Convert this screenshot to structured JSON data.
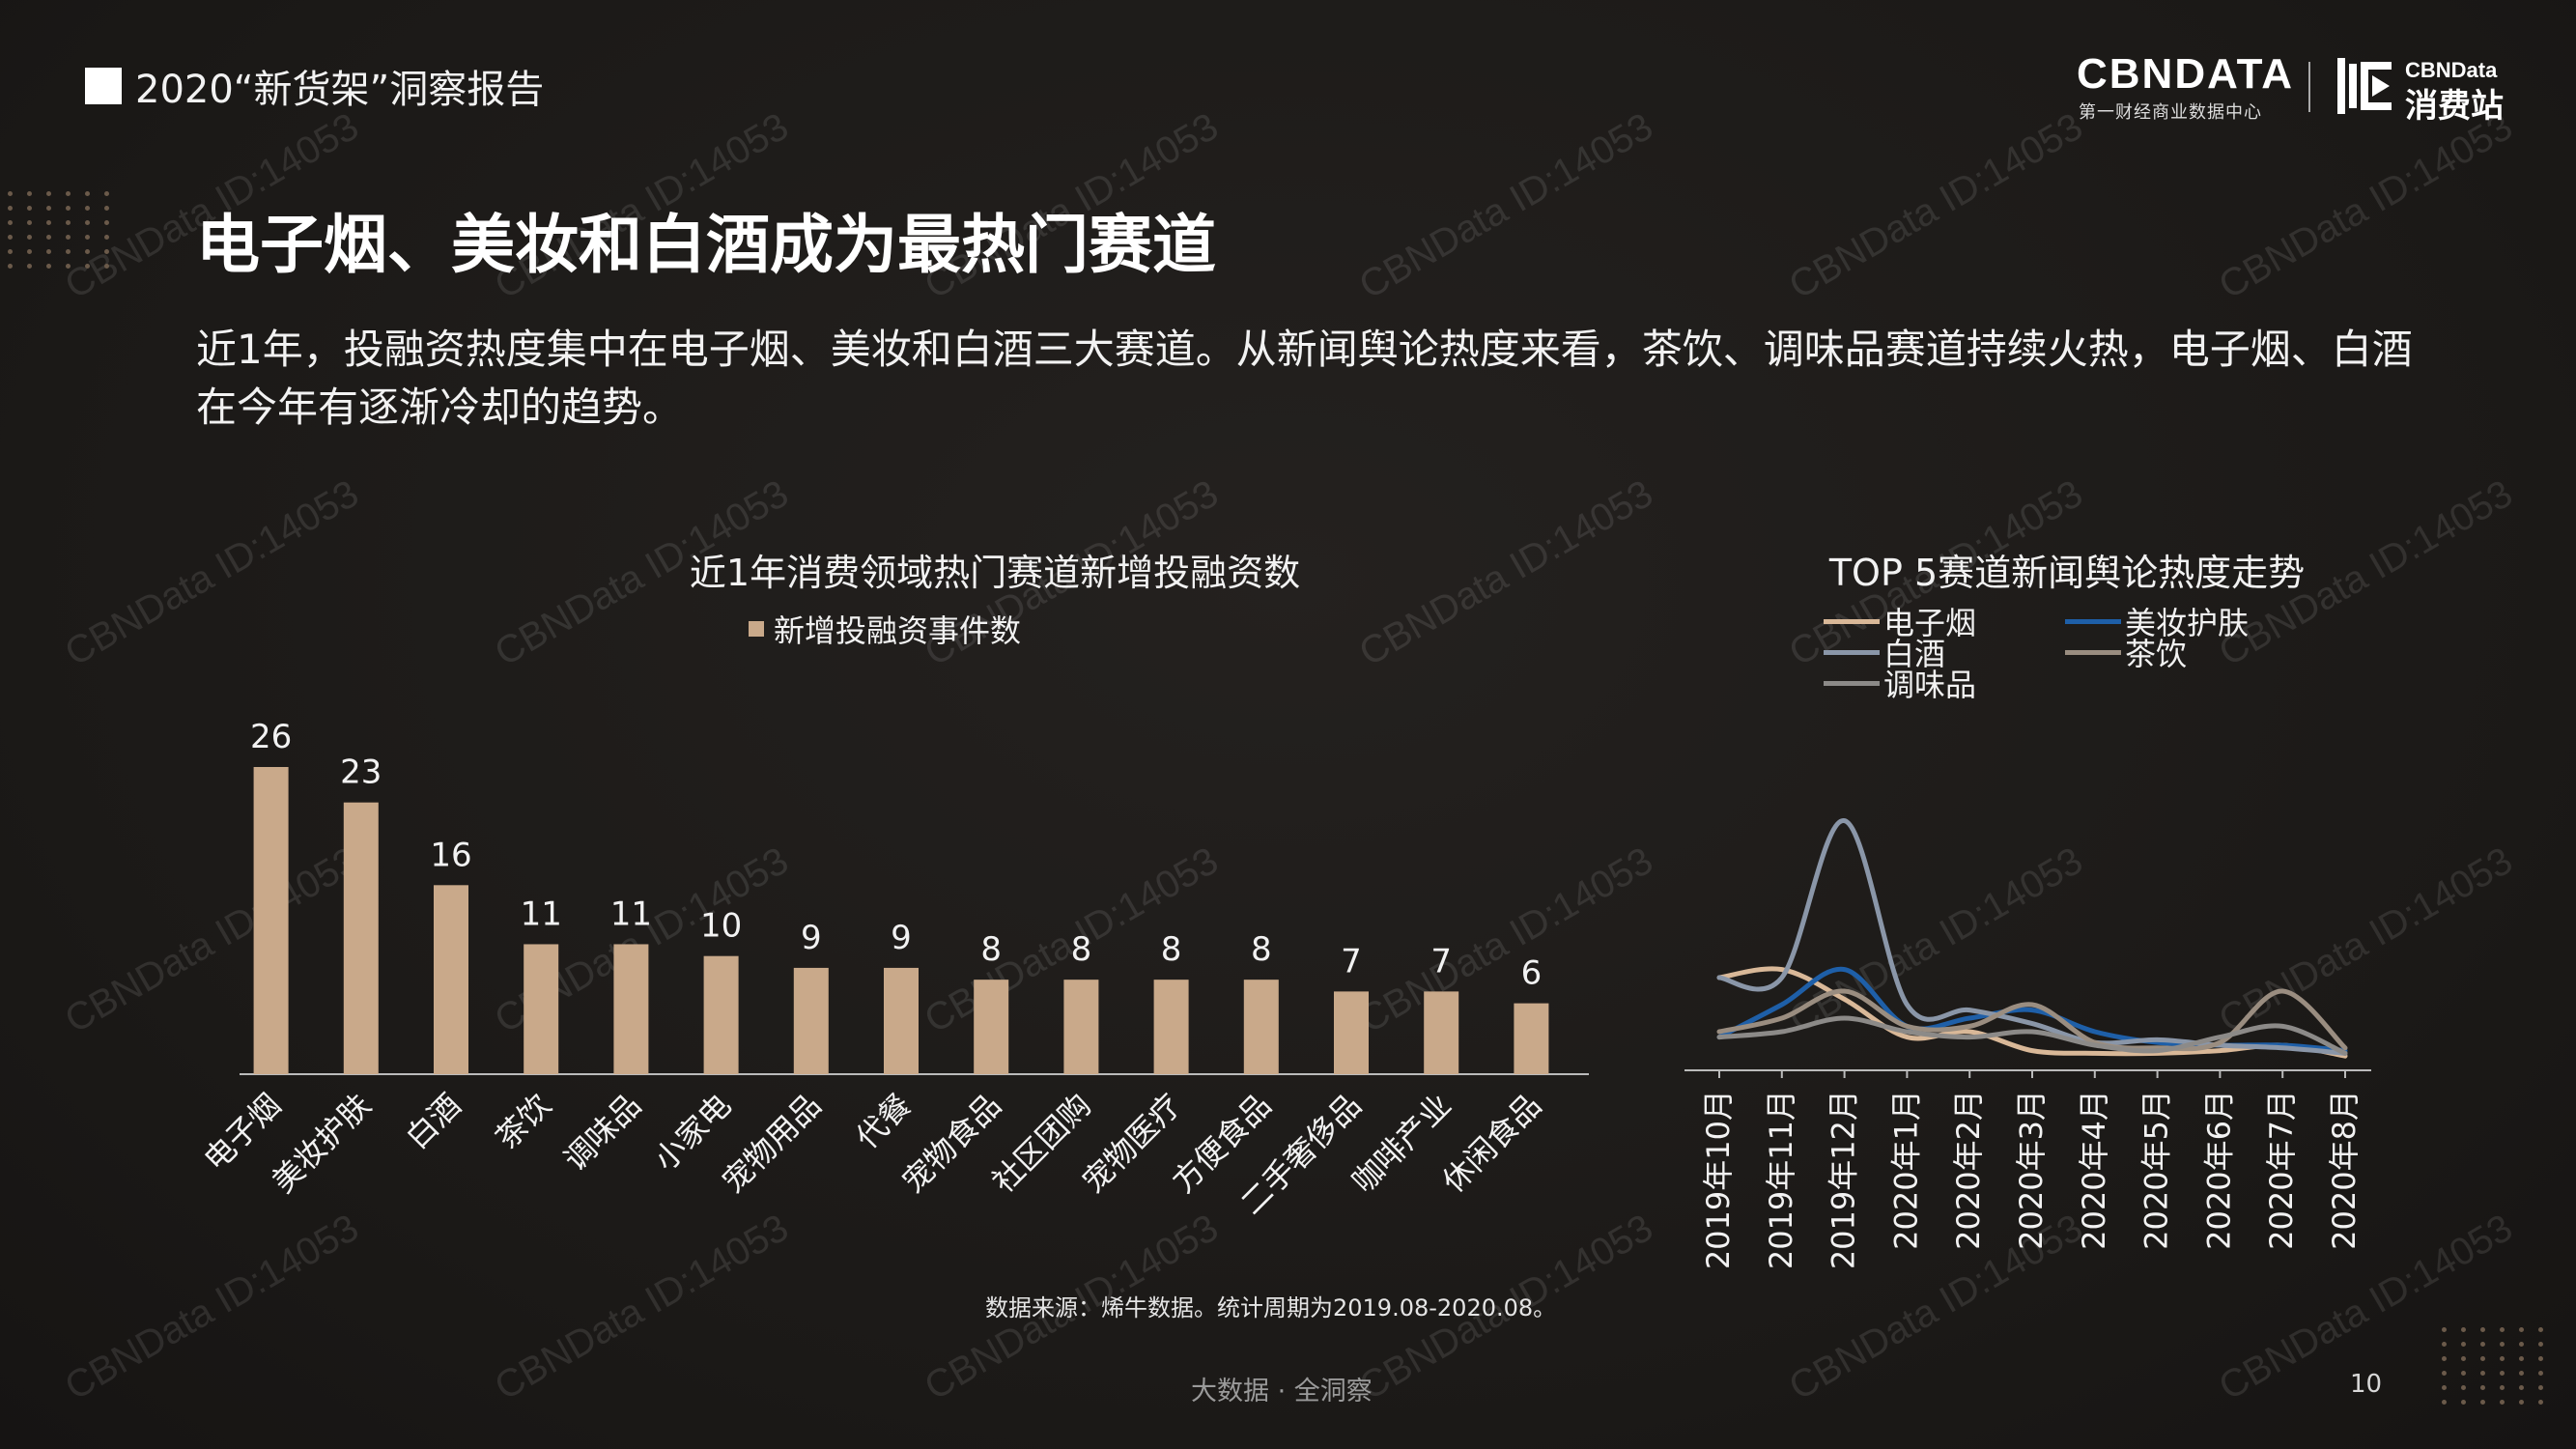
{
  "header": {
    "title": "2020“新货架”洞察报告"
  },
  "logo": {
    "primary": "CBNDATA",
    "primary_sub": "第一财经商业数据中心",
    "secondary_top": "CBNData",
    "secondary_bottom": "消费站"
  },
  "page_title": "电子烟、美妆和白酒成为最热门赛道",
  "intro": "近1年，投融资热度集中在电子烟、美妆和白酒三大赛道。从新闻舆论热度来看，茶饮、调味品赛道持续火热，电子烟、白酒在今年有逐渐冷却的趋势。",
  "watermark": "CBNData ID:14053",
  "source": "数据来源：烯牛数据。统计周期为2019.08-2020.08。",
  "footer": "大数据 · 全洞察",
  "page_number": "10",
  "colors": {
    "bar": "#c9a98a",
    "electronic_cig": "#d9b898",
    "beauty": "#1e5fa8",
    "baijiu": "#8a96a8",
    "tea": "#9a8d80",
    "seasoning": "#8c8a88",
    "axis": "#bbbbbb"
  },
  "chart_data": [
    {
      "type": "bar",
      "title": "近1年消费领域热门赛道新增投融资数",
      "legend": "新增投融资事件数",
      "categories": [
        "电子烟",
        "美妆护肤",
        "白酒",
        "茶饮",
        "调味品",
        "小家电",
        "宠物用品",
        "代餐",
        "宠物食品",
        "社区团购",
        "宠物医疗",
        "方便食品",
        "二手奢侈品",
        "咖啡产业",
        "休闲食品"
      ],
      "values": [
        26,
        23,
        16,
        11,
        11,
        10,
        9,
        9,
        8,
        8,
        8,
        8,
        7,
        7,
        6
      ],
      "ylim": [
        0,
        28
      ]
    },
    {
      "type": "line",
      "title": "TOP 5赛道新闻舆论热度走势",
      "categories": [
        "2019年10月",
        "2019年11月",
        "2019年12月",
        "2020年1月",
        "2020年2月",
        "2020年3月",
        "2020年4月",
        "2020年5月",
        "2020年6月",
        "2020年7月",
        "2020年8月"
      ],
      "legend_position": "top",
      "ylim": [
        0,
        100
      ],
      "series": [
        {
          "name": "电子烟",
          "color_key": "electronic_cig",
          "values": [
            30,
            33,
            22,
            8,
            10,
            3,
            2,
            2,
            3,
            5,
            1
          ]
        },
        {
          "name": "美妆护肤",
          "color_key": "beauty",
          "values": [
            8,
            20,
            33,
            12,
            15,
            18,
            10,
            6,
            5,
            5,
            3
          ]
        },
        {
          "name": "白酒",
          "color_key": "baijiu",
          "values": [
            30,
            30,
            88,
            20,
            18,
            13,
            6,
            7,
            5,
            4,
            2
          ]
        },
        {
          "name": "茶饮",
          "color_key": "tea",
          "values": [
            10,
            15,
            25,
            12,
            12,
            20,
            6,
            4,
            6,
            25,
            4
          ]
        },
        {
          "name": "调味品",
          "color_key": "seasoning",
          "values": [
            8,
            10,
            15,
            10,
            8,
            10,
            5,
            3,
            8,
            12,
            2
          ]
        }
      ]
    }
  ]
}
